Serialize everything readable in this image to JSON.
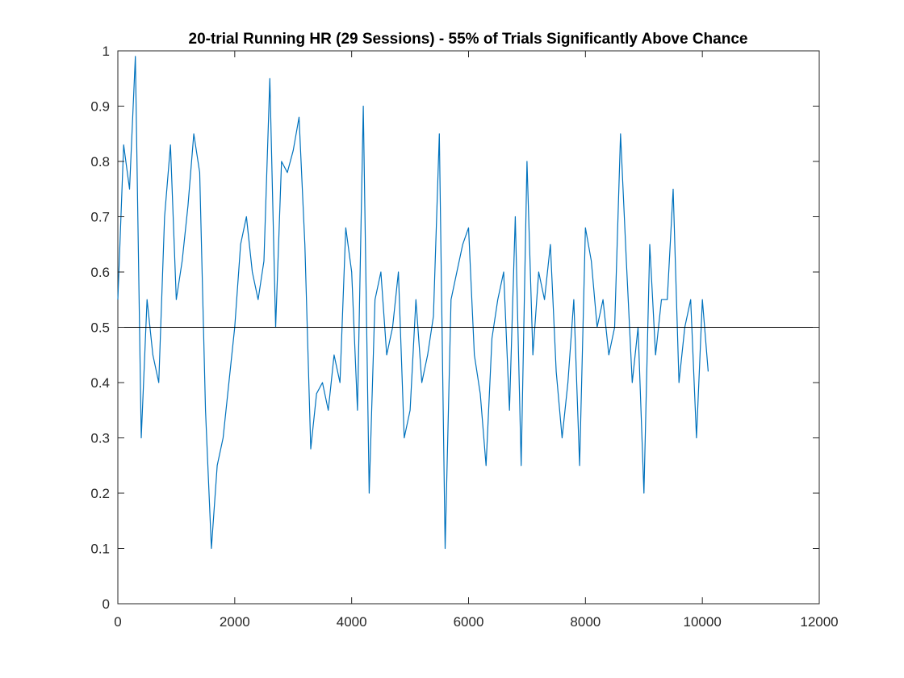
{
  "chart_data": {
    "type": "line",
    "title": "20-trial Running HR (29 Sessions) - 55% of Trials Significantly Above Chance",
    "xlabel": "",
    "ylabel": "",
    "xlim": [
      0,
      12000
    ],
    "ylim": [
      0,
      1
    ],
    "x_ticks": [
      "0",
      "2000",
      "4000",
      "6000",
      "8000",
      "10000",
      "12000"
    ],
    "y_ticks": [
      "0",
      "0.1",
      "0.2",
      "0.3",
      "0.4",
      "0.5",
      "0.6",
      "0.7",
      "0.8",
      "0.9",
      "1"
    ],
    "grid": false,
    "legend": "none",
    "reference_line": {
      "y": 0.5,
      "color": "#000000"
    },
    "series": [
      {
        "color": "#0072BD",
        "x": [
          0,
          100,
          200,
          300,
          400,
          500,
          600,
          700,
          800,
          900,
          1000,
          1100,
          1200,
          1300,
          1400,
          1500,
          1600,
          1700,
          1800,
          1900,
          2000,
          2100,
          2200,
          2300,
          2400,
          2500,
          2600,
          2700,
          2800,
          2900,
          3000,
          3100,
          3200,
          3300,
          3400,
          3500,
          3600,
          3700,
          3800,
          3900,
          4000,
          4100,
          4200,
          4300,
          4400,
          4500,
          4600,
          4700,
          4800,
          4900,
          5000,
          5100,
          5200,
          5300,
          5400,
          5500,
          5600,
          5700,
          5800,
          5900,
          6000,
          6100,
          6200,
          6300,
          6400,
          6500,
          6600,
          6700,
          6800,
          6900,
          7000,
          7100,
          7200,
          7300,
          7400,
          7500,
          7600,
          7700,
          7800,
          7900,
          8000,
          8100,
          8200,
          8300,
          8400,
          8500,
          8600,
          8700,
          8800,
          8900,
          9000,
          9100,
          9200,
          9300,
          9400,
          9500,
          9600,
          9700,
          9800,
          9900,
          10000,
          10100
        ],
        "y": [
          0.55,
          0.83,
          0.75,
          0.99,
          0.3,
          0.55,
          0.45,
          0.4,
          0.7,
          0.83,
          0.55,
          0.62,
          0.72,
          0.85,
          0.78,
          0.35,
          0.1,
          0.25,
          0.3,
          0.4,
          0.5,
          0.65,
          0.7,
          0.6,
          0.55,
          0.62,
          0.95,
          0.5,
          0.8,
          0.78,
          0.82,
          0.88,
          0.65,
          0.28,
          0.38,
          0.4,
          0.35,
          0.45,
          0.4,
          0.68,
          0.6,
          0.35,
          0.9,
          0.2,
          0.55,
          0.6,
          0.45,
          0.5,
          0.6,
          0.3,
          0.35,
          0.55,
          0.4,
          0.45,
          0.52,
          0.85,
          0.1,
          0.55,
          0.6,
          0.65,
          0.68,
          0.45,
          0.38,
          0.25,
          0.48,
          0.55,
          0.6,
          0.35,
          0.7,
          0.25,
          0.8,
          0.45,
          0.6,
          0.55,
          0.65,
          0.42,
          0.3,
          0.4,
          0.55,
          0.25,
          0.68,
          0.62,
          0.5,
          0.55,
          0.45,
          0.5,
          0.85,
          0.62,
          0.4,
          0.5,
          0.2,
          0.65,
          0.45,
          0.55,
          0.55,
          0.75,
          0.4,
          0.5,
          0.55,
          0.3,
          0.55,
          0.42
        ]
      }
    ]
  }
}
